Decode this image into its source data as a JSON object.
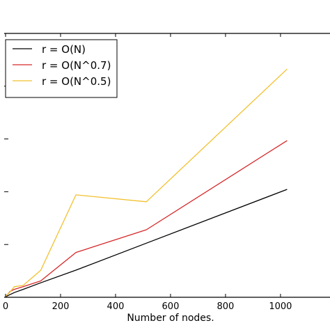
{
  "chart_data": {
    "type": "line",
    "xlabel": "Number of nodes.",
    "ylabel": "",
    "title": "",
    "xlim": [
      0,
      1180
    ],
    "ylim": [
      0,
      1000
    ],
    "x_ticks": [
      0,
      200,
      400,
      600,
      800,
      1000
    ],
    "x_tick_labels": [
      "0",
      "200",
      "400",
      "600",
      "800",
      "1000"
    ],
    "y_ticks": [
      200,
      400,
      600,
      800
    ],
    "grid": false,
    "legend_position": "top-left",
    "series": [
      {
        "name": "r = O(N)",
        "color": "#000000",
        "points": [
          [
            2,
            3
          ],
          [
            8,
            6
          ],
          [
            16,
            10
          ],
          [
            32,
            18
          ],
          [
            64,
            30
          ],
          [
            128,
            55
          ],
          [
            256,
            103
          ],
          [
            512,
            205
          ],
          [
            1024,
            409
          ]
        ]
      },
      {
        "name": "r = O(N^0.7)",
        "color": "#d62728",
        "points": [
          [
            2,
            4
          ],
          [
            8,
            12
          ],
          [
            16,
            22
          ],
          [
            32,
            30
          ],
          [
            64,
            40
          ],
          [
            128,
            62
          ],
          [
            256,
            170
          ],
          [
            512,
            256
          ],
          [
            1024,
            594
          ]
        ]
      },
      {
        "name": "r = O(N^0.5)",
        "color": "#f2c12e",
        "points": [
          [
            2,
            5
          ],
          [
            8,
            12
          ],
          [
            16,
            20
          ],
          [
            32,
            40
          ],
          [
            64,
            45
          ],
          [
            128,
            102
          ],
          [
            256,
            388
          ],
          [
            512,
            362
          ],
          [
            1024,
            865
          ]
        ]
      }
    ]
  }
}
